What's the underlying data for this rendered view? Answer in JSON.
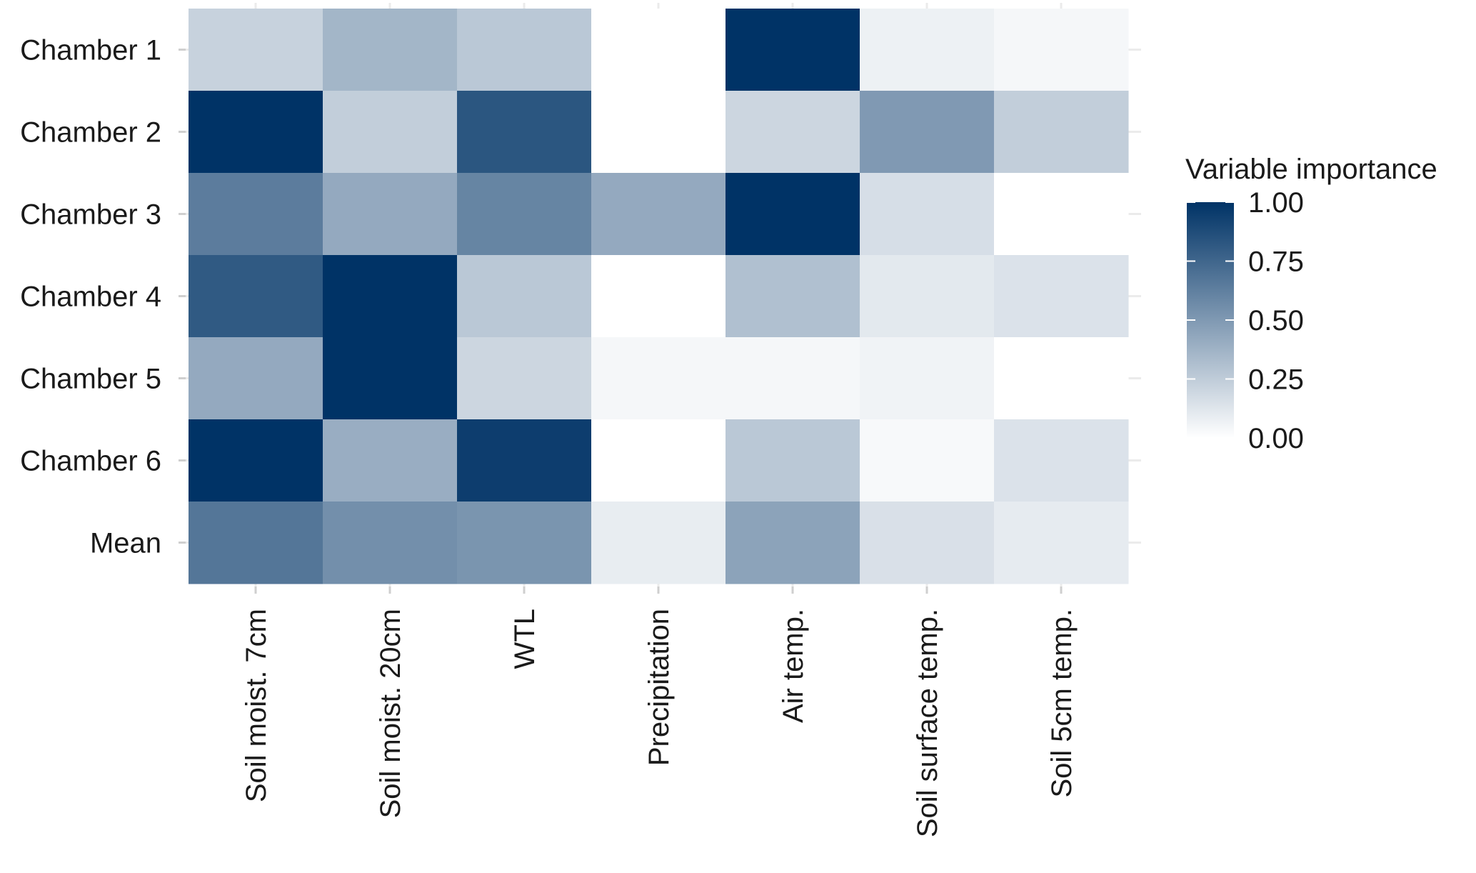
{
  "chart_data": {
    "type": "heatmap",
    "rows": [
      "Chamber 1",
      "Chamber 2",
      "Chamber 3",
      "Chamber 4",
      "Chamber 5",
      "Chamber 6",
      "Mean"
    ],
    "columns": [
      "Soil moist. 7cm",
      "Soil moist. 20cm",
      "WTL",
      "Precipitation",
      "Air temp.",
      "Soil surface temp.",
      "Soil 5cm temp."
    ],
    "values": [
      [
        0.22,
        0.36,
        0.27,
        0.0,
        1.0,
        0.07,
        0.04
      ],
      [
        1.0,
        0.24,
        0.83,
        0.0,
        0.2,
        0.5,
        0.24
      ],
      [
        0.64,
        0.42,
        0.6,
        0.42,
        1.0,
        0.16,
        0.0
      ],
      [
        0.81,
        1.0,
        0.27,
        0.0,
        0.31,
        0.11,
        0.14
      ],
      [
        0.42,
        1.0,
        0.2,
        0.04,
        0.04,
        0.06,
        0.0
      ],
      [
        1.0,
        0.4,
        0.95,
        0.0,
        0.27,
        0.03,
        0.14
      ],
      [
        0.67,
        0.55,
        0.52,
        0.09,
        0.45,
        0.15,
        0.1
      ]
    ],
    "color_scale": {
      "low": "#ffffff",
      "high": "#003366",
      "domain": [
        0,
        1
      ]
    },
    "legend": {
      "title": "Variable importance",
      "ticks": [
        "1.00",
        "0.75",
        "0.50",
        "0.25",
        "0.00"
      ],
      "tick_values": [
        1.0,
        0.75,
        0.5,
        0.25,
        0.0
      ],
      "position": "right"
    },
    "grid": true,
    "grid_color": "#ebebeb"
  }
}
